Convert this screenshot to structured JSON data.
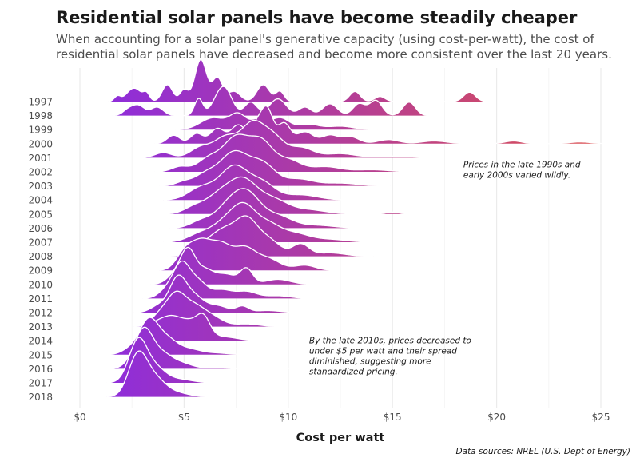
{
  "header": {
    "title": "Residential solar panels have become steadily cheaper",
    "subtitle": "When accounting for a solar panel's generative capacity (using cost-per-watt), the cost of residential solar panels have decreased and become more consistent over the last 20 years."
  },
  "caption": "Data sources: NREL (U.S. Dept of Energy)",
  "chart_data": {
    "type": "ridgeline",
    "title": "Residential solar panels have become steadily cheaper",
    "xlabel": "Cost per watt",
    "ylabel": "",
    "xlim": [
      0,
      25
    ],
    "x_ticks": [
      {
        "value": 0,
        "label": "$0"
      },
      {
        "value": 5,
        "label": "$5"
      },
      {
        "value": 10,
        "label": "$10"
      },
      {
        "value": 15,
        "label": "$15"
      },
      {
        "value": 20,
        "label": "$20"
      },
      {
        "value": 25,
        "label": "$25"
      }
    ],
    "grid": true,
    "colors": {
      "low": "#8a2be2",
      "high": "#dc5050"
    },
    "annotations": [
      {
        "text": [
          "Prices in the late 1990s and",
          "early 2000s varied wildly."
        ],
        "x": 18.4,
        "y_year": 2001.7
      },
      {
        "text": [
          "By the late 2010s, prices decreased to",
          "under $5 per watt and their spread",
          "diminished, suggesting more",
          "standardized pricing."
        ],
        "x": 11.0,
        "y_year": 2014.2
      }
    ],
    "series": [
      {
        "name": "1997",
        "peaks": [
          [
            1.8,
            0.15,
            0.15
          ],
          [
            2.6,
            0.4,
            0.35
          ],
          [
            3.2,
            0.2,
            0.15
          ],
          [
            4.2,
            0.5,
            0.25
          ],
          [
            5.0,
            0.35,
            0.2
          ],
          [
            5.8,
            1.25,
            0.28
          ],
          [
            6.6,
            0.7,
            0.25
          ],
          [
            7.4,
            0.3,
            0.3
          ],
          [
            8.8,
            0.5,
            0.3
          ],
          [
            9.6,
            0.3,
            0.2
          ],
          [
            13.2,
            0.3,
            0.25
          ],
          [
            14.4,
            0.15,
            0.25
          ],
          [
            18.7,
            0.28,
            0.28
          ]
        ]
      },
      {
        "name": "1998",
        "peaks": [
          [
            2.3,
            0.15,
            0.25
          ],
          [
            2.8,
            0.3,
            0.3
          ],
          [
            3.7,
            0.25,
            0.3
          ],
          [
            5.7,
            0.5,
            0.2
          ],
          [
            6.6,
            0.35,
            0.35
          ],
          [
            7.0,
            0.65,
            0.35
          ],
          [
            8.2,
            0.4,
            0.3
          ],
          [
            9.5,
            0.5,
            0.4
          ],
          [
            10.8,
            0.25,
            0.3
          ],
          [
            12.0,
            0.35,
            0.35
          ],
          [
            13.4,
            0.35,
            0.3
          ],
          [
            14.2,
            0.45,
            0.3
          ],
          [
            15.8,
            0.4,
            0.3
          ]
        ]
      },
      {
        "name": "1999",
        "peaks": [
          [
            6.4,
            0.35,
            0.6
          ],
          [
            7.6,
            0.45,
            0.4
          ],
          [
            8.6,
            0.3,
            0.35
          ],
          [
            9.6,
            0.35,
            0.45
          ],
          [
            11.0,
            0.15,
            0.5
          ],
          [
            12.5,
            0.1,
            0.6
          ]
        ]
      },
      {
        "name": "2000",
        "peaks": [
          [
            4.5,
            0.25,
            0.3
          ],
          [
            5.6,
            0.3,
            0.3
          ],
          [
            6.6,
            0.45,
            0.35
          ],
          [
            7.6,
            0.55,
            0.35
          ],
          [
            8.5,
            0.55,
            0.3
          ],
          [
            9.0,
            0.95,
            0.28
          ],
          [
            9.8,
            0.6,
            0.3
          ],
          [
            10.8,
            0.35,
            0.4
          ],
          [
            12.0,
            0.25,
            0.4
          ],
          [
            13.0,
            0.2,
            0.4
          ],
          [
            14.8,
            0.12,
            0.5
          ],
          [
            17.0,
            0.08,
            0.6
          ],
          [
            20.8,
            0.08,
            0.4
          ],
          [
            24.0,
            0.05,
            0.5
          ]
        ]
      },
      {
        "name": "2001",
        "peaks": [
          [
            4.0,
            0.15,
            0.4
          ],
          [
            5.8,
            0.3,
            0.5
          ],
          [
            7.0,
            0.6,
            0.55
          ],
          [
            8.3,
            1.0,
            0.55
          ],
          [
            9.3,
            0.55,
            0.5
          ],
          [
            10.6,
            0.3,
            0.6
          ],
          [
            12.5,
            0.12,
            0.7
          ],
          [
            15.0,
            0.05,
            0.8
          ]
        ]
      },
      {
        "name": "2002",
        "peaks": [
          [
            4.8,
            0.15,
            0.4
          ],
          [
            6.2,
            0.4,
            0.55
          ],
          [
            7.5,
            1.0,
            0.6
          ],
          [
            8.7,
            0.85,
            0.55
          ],
          [
            10.0,
            0.35,
            0.6
          ],
          [
            11.8,
            0.15,
            0.7
          ],
          [
            14.0,
            0.06,
            0.8
          ]
        ]
      },
      {
        "name": "2003",
        "peaks": [
          [
            5.0,
            0.12,
            0.4
          ],
          [
            6.0,
            0.3,
            0.5
          ],
          [
            7.4,
            1.0,
            0.7
          ],
          [
            8.8,
            0.6,
            0.6
          ],
          [
            10.5,
            0.2,
            0.7
          ],
          [
            12.5,
            0.08,
            0.8
          ]
        ]
      },
      {
        "name": "2004",
        "peaks": [
          [
            5.8,
            0.35,
            0.6
          ],
          [
            7.4,
            1.0,
            0.7
          ],
          [
            8.8,
            0.45,
            0.6
          ],
          [
            10.6,
            0.15,
            0.8
          ]
        ]
      },
      {
        "name": "2005",
        "peaks": [
          [
            5.5,
            0.2,
            0.5
          ],
          [
            6.6,
            0.45,
            0.6
          ],
          [
            7.8,
            1.0,
            0.7
          ],
          [
            9.3,
            0.4,
            0.7
          ],
          [
            11.0,
            0.12,
            0.8
          ],
          [
            15.0,
            0.06,
            0.3
          ]
        ]
      },
      {
        "name": "2006",
        "peaks": [
          [
            5.8,
            0.2,
            0.5
          ],
          [
            7.0,
            0.5,
            0.6
          ],
          [
            8.0,
            1.0,
            0.65
          ],
          [
            9.5,
            0.35,
            0.7
          ],
          [
            11.4,
            0.08,
            0.8
          ]
        ]
      },
      {
        "name": "2007",
        "peaks": [
          [
            5.8,
            0.25,
            0.6
          ],
          [
            7.0,
            0.55,
            0.6
          ],
          [
            7.9,
            0.9,
            0.55
          ],
          [
            9.0,
            0.5,
            0.6
          ],
          [
            10.3,
            0.25,
            0.7
          ],
          [
            12.0,
            0.08,
            0.8
          ]
        ]
      },
      {
        "name": "2008",
        "peaks": [
          [
            6.0,
            0.3,
            0.6
          ],
          [
            7.0,
            0.7,
            0.6
          ],
          [
            8.0,
            0.9,
            0.5
          ],
          [
            9.0,
            0.5,
            0.6
          ],
          [
            10.6,
            0.35,
            0.4
          ],
          [
            12.0,
            0.1,
            0.7
          ]
        ]
      },
      {
        "name": "2009",
        "peaks": [
          [
            5.0,
            0.45,
            0.4
          ],
          [
            5.8,
            0.8,
            0.5
          ],
          [
            6.8,
            0.7,
            0.5
          ],
          [
            7.9,
            0.6,
            0.5
          ],
          [
            9.0,
            0.35,
            0.6
          ],
          [
            10.8,
            0.15,
            0.5
          ]
        ]
      },
      {
        "name": "2010",
        "peaks": [
          [
            4.6,
            0.3,
            0.4
          ],
          [
            5.2,
            0.95,
            0.35
          ],
          [
            6.0,
            0.4,
            0.4
          ],
          [
            7.0,
            0.3,
            0.5
          ],
          [
            8.0,
            0.45,
            0.3
          ],
          [
            9.5,
            0.15,
            0.6
          ]
        ]
      },
      {
        "name": "2011",
        "peaks": [
          [
            4.2,
            0.25,
            0.4
          ],
          [
            4.9,
            1.0,
            0.4
          ],
          [
            5.7,
            0.45,
            0.4
          ],
          [
            6.8,
            0.25,
            0.5
          ],
          [
            8.0,
            0.2,
            0.5
          ],
          [
            9.5,
            0.08,
            0.6
          ]
        ]
      },
      {
        "name": "2012",
        "peaks": [
          [
            3.8,
            0.2,
            0.4
          ],
          [
            4.7,
            1.0,
            0.4
          ],
          [
            5.5,
            0.45,
            0.45
          ],
          [
            6.6,
            0.2,
            0.5
          ],
          [
            7.8,
            0.18,
            0.3
          ],
          [
            9.0,
            0.06,
            0.6
          ]
        ]
      },
      {
        "name": "2013",
        "peaks": [
          [
            3.8,
            0.3,
            0.4
          ],
          [
            4.6,
            0.9,
            0.45
          ],
          [
            5.5,
            0.55,
            0.5
          ],
          [
            6.4,
            0.25,
            0.5
          ],
          [
            8.0,
            0.08,
            0.6
          ]
        ]
      },
      {
        "name": "2014",
        "peaks": [
          [
            3.5,
            0.35,
            0.4
          ],
          [
            4.3,
            0.6,
            0.5
          ],
          [
            5.4,
            0.55,
            0.6
          ],
          [
            5.95,
            0.4,
            0.3
          ],
          [
            7.0,
            0.1,
            0.6
          ]
        ]
      },
      {
        "name": "2015",
        "peaks": [
          [
            2.4,
            0.15,
            0.4
          ],
          [
            3.3,
            1.0,
            0.45
          ],
          [
            4.2,
            0.45,
            0.5
          ],
          [
            5.3,
            0.15,
            0.5
          ],
          [
            6.5,
            0.05,
            0.6
          ]
        ]
      },
      {
        "name": "2016",
        "peaks": [
          [
            2.6,
            0.25,
            0.4
          ],
          [
            3.1,
            1.0,
            0.4
          ],
          [
            3.9,
            0.45,
            0.5
          ],
          [
            4.9,
            0.15,
            0.5
          ],
          [
            6.5,
            0.03,
            0.6
          ],
          [
            10.0,
            0.01,
            0.5
          ]
        ]
      },
      {
        "name": "2017",
        "peaks": [
          [
            2.5,
            0.3,
            0.4
          ],
          [
            2.85,
            1.0,
            0.4
          ],
          [
            3.6,
            0.45,
            0.5
          ],
          [
            4.8,
            0.1,
            0.6
          ]
        ]
      },
      {
        "name": "2018",
        "peaks": [
          [
            2.5,
            0.3,
            0.4
          ],
          [
            2.85,
            1.0,
            0.42
          ],
          [
            3.6,
            0.5,
            0.5
          ],
          [
            4.6,
            0.12,
            0.6
          ]
        ]
      }
    ]
  }
}
